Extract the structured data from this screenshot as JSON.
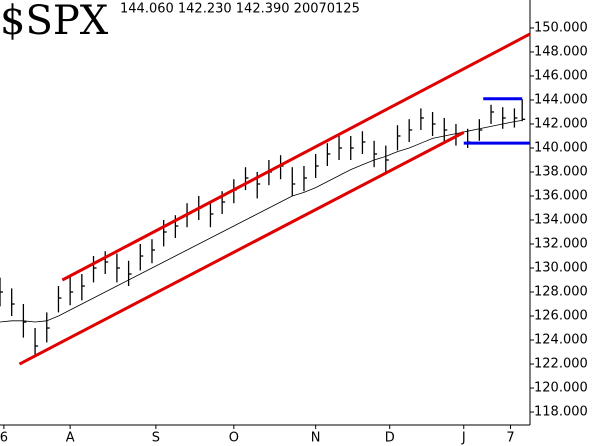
{
  "chart_data": {
    "type": "ohlc",
    "title": "$SPX",
    "subtitle": "144.060 142.230 142.390 20070125",
    "bar_color": "#000000",
    "x": [
      0,
      3,
      6,
      9,
      12,
      15,
      18,
      21,
      24,
      27,
      30,
      33,
      36,
      39,
      42,
      45,
      48,
      51,
      54,
      57,
      60,
      63,
      66,
      69,
      72,
      75,
      78,
      81,
      84,
      87,
      90,
      93,
      96,
      99,
      102,
      105,
      108,
      111,
      114,
      117,
      120,
      123,
      126,
      129,
      132,
      134
    ],
    "high": [
      129.2,
      128.3,
      127.0,
      125.0,
      126.3,
      128.5,
      129.3,
      129.5,
      131.0,
      131.4,
      131.2,
      130.6,
      132.0,
      132.4,
      134.0,
      134.4,
      135.4,
      136.0,
      135.6,
      136.4,
      137.4,
      138.4,
      138.0,
      139.0,
      139.4,
      138.4,
      138.5,
      139.5,
      140.4,
      141.0,
      141.0,
      141.4,
      140.6,
      140.2,
      141.9,
      142.4,
      143.3,
      143.0,
      142.5,
      142.0,
      141.6,
      142.4,
      143.6,
      143.4,
      143.3,
      144.06
    ],
    "low": [
      126.8,
      126.0,
      124.2,
      122.8,
      123.8,
      126.3,
      126.9,
      127.3,
      128.8,
      129.5,
      128.8,
      128.5,
      129.8,
      130.4,
      131.8,
      132.5,
      133.4,
      134.0,
      133.4,
      134.5,
      135.4,
      136.5,
      135.8,
      136.9,
      137.4,
      136.0,
      136.4,
      137.5,
      138.5,
      139.0,
      139.0,
      139.5,
      138.4,
      138.0,
      139.8,
      140.5,
      141.5,
      141.0,
      140.4,
      140.2,
      140.0,
      140.6,
      142.0,
      141.6,
      141.7,
      142.23
    ],
    "close": [
      128,
      127,
      125.5,
      123.5,
      125,
      127.5,
      128,
      128.5,
      130,
      130.5,
      130,
      129.5,
      131,
      131.5,
      133,
      133.5,
      134.5,
      135,
      134.5,
      135.5,
      136.5,
      137.5,
      137,
      138,
      138.5,
      137,
      137.5,
      138.5,
      139.5,
      140,
      140,
      140.5,
      139.5,
      139,
      141,
      141.5,
      142.5,
      142,
      141.5,
      141,
      140.5,
      141.5,
      143,
      142.5,
      142.5,
      142.39
    ],
    "moving_average": {
      "color": "#000000",
      "values": [
        125.5,
        125.6,
        125.6,
        125.5,
        125.6,
        126,
        126.5,
        127,
        127.5,
        128,
        128.5,
        129,
        129.5,
        130,
        130.5,
        131,
        131.5,
        132,
        132.5,
        133,
        133.5,
        134,
        134.5,
        135,
        135.5,
        136,
        136.3,
        136.7,
        137.2,
        137.7,
        138.2,
        138.6,
        139,
        139.3,
        139.7,
        140,
        140.4,
        140.8,
        141,
        141.2,
        141.4,
        141.6,
        141.8,
        142,
        142.2,
        142.3
      ]
    },
    "lines": [
      {
        "color": "#e00000",
        "x": [
          16,
          136
        ],
        "values": [
          129,
          149.5
        ]
      },
      {
        "color": "#e00000",
        "x": [
          5,
          119
        ],
        "values": [
          122,
          141.3
        ]
      },
      {
        "color": "#0000ee",
        "x": [
          124,
          134
        ],
        "values": [
          144.1,
          144.1
        ]
      },
      {
        "color": "#0000ee",
        "x": [
          119,
          136
        ],
        "values": [
          140.4,
          140.4
        ]
      }
    ],
    "xlim": [
      0,
      136
    ],
    "xticks": [
      {
        "value": 1,
        "label": "6"
      },
      {
        "value": 18,
        "label": "A"
      },
      {
        "value": 40,
        "label": "S"
      },
      {
        "value": 60,
        "label": "O"
      },
      {
        "value": 81,
        "label": "N"
      },
      {
        "value": 100,
        "label": "D"
      },
      {
        "value": 119,
        "label": "J"
      },
      {
        "value": 131,
        "label": "7"
      }
    ],
    "ylim": [
      116.92,
      152.33
    ],
    "yticks": [
      {
        "value": 118,
        "label": "118.000"
      },
      {
        "value": 120,
        "label": "120.000"
      },
      {
        "value": 122,
        "label": "122.000"
      },
      {
        "value": 124,
        "label": "124.000"
      },
      {
        "value": 126,
        "label": "126.000"
      },
      {
        "value": 128,
        "label": "128.000"
      },
      {
        "value": 130,
        "label": "130.000"
      },
      {
        "value": 132,
        "label": "132.000"
      },
      {
        "value": 134,
        "label": "134.000"
      },
      {
        "value": 136,
        "label": "136.000"
      },
      {
        "value": 138,
        "label": "138.000"
      },
      {
        "value": 140,
        "label": "140.000"
      },
      {
        "value": 142,
        "label": "142.000"
      },
      {
        "value": 144,
        "label": "144.000"
      },
      {
        "value": 146,
        "label": "146.000"
      },
      {
        "value": 148,
        "label": "148.000"
      },
      {
        "value": 150,
        "label": "150.000"
      }
    ]
  }
}
